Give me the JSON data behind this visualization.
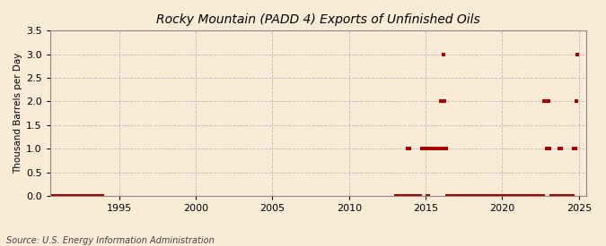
{
  "title": "Rocky Mountain (PADD 4) Exports of Unfinished Oils",
  "ylabel": "Thousand Barrels per Day",
  "source": "Source: U.S. Energy Information Administration",
  "background_color": "#faebd7",
  "plot_bg_color": "#faebd7",
  "marker_color": "#aa0000",
  "xlim": [
    1990.5,
    2025.5
  ],
  "ylim": [
    0,
    3.5
  ],
  "yticks": [
    0.0,
    0.5,
    1.0,
    1.5,
    2.0,
    2.5,
    3.0,
    3.5
  ],
  "xticks": [
    1995,
    2000,
    2005,
    2010,
    2015,
    2020,
    2025
  ],
  "data_points": [
    [
      1990.083,
      0.0
    ],
    [
      1990.167,
      0.0
    ],
    [
      1990.25,
      0.0
    ],
    [
      1990.333,
      0.0
    ],
    [
      1990.417,
      0.0
    ],
    [
      1990.5,
      0.0
    ],
    [
      1990.583,
      0.0
    ],
    [
      1990.667,
      0.0
    ],
    [
      1990.75,
      0.0
    ],
    [
      1990.833,
      0.0
    ],
    [
      1990.917,
      0.0
    ],
    [
      1991.0,
      0.0
    ],
    [
      1991.083,
      0.0
    ],
    [
      1991.167,
      0.0
    ],
    [
      1991.25,
      0.0
    ],
    [
      1991.333,
      0.0
    ],
    [
      1991.417,
      0.0
    ],
    [
      1991.5,
      0.0
    ],
    [
      1991.583,
      0.0
    ],
    [
      1991.667,
      0.0
    ],
    [
      1991.75,
      0.0
    ],
    [
      1991.833,
      0.0
    ],
    [
      1991.917,
      0.0
    ],
    [
      1992.0,
      0.0
    ],
    [
      1992.083,
      0.0
    ],
    [
      1992.167,
      0.0
    ],
    [
      1992.25,
      0.0
    ],
    [
      1992.333,
      0.0
    ],
    [
      1992.417,
      0.0
    ],
    [
      1992.5,
      0.0
    ],
    [
      1992.583,
      0.0
    ],
    [
      1992.667,
      0.0
    ],
    [
      1992.75,
      0.0
    ],
    [
      1992.833,
      0.0
    ],
    [
      1992.917,
      0.0
    ],
    [
      1993.0,
      0.0
    ],
    [
      1993.083,
      0.0
    ],
    [
      1993.167,
      0.0
    ],
    [
      1993.25,
      0.0
    ],
    [
      1993.333,
      0.0
    ],
    [
      1993.417,
      0.0
    ],
    [
      1993.5,
      0.0
    ],
    [
      1993.583,
      0.0
    ],
    [
      1993.667,
      0.0
    ],
    [
      1993.75,
      0.0
    ],
    [
      1993.833,
      0.0
    ],
    [
      1993.917,
      0.0
    ],
    [
      2013.083,
      0.0
    ],
    [
      2013.167,
      0.0
    ],
    [
      2013.25,
      0.0
    ],
    [
      2013.333,
      0.0
    ],
    [
      2013.417,
      0.0
    ],
    [
      2013.5,
      0.0
    ],
    [
      2013.583,
      0.0
    ],
    [
      2013.667,
      0.0
    ],
    [
      2013.75,
      0.0
    ],
    [
      2013.833,
      1.0
    ],
    [
      2013.917,
      1.0
    ],
    [
      2014.0,
      0.0
    ],
    [
      2014.083,
      0.0
    ],
    [
      2014.167,
      0.0
    ],
    [
      2014.25,
      0.0
    ],
    [
      2014.333,
      0.0
    ],
    [
      2014.417,
      0.0
    ],
    [
      2014.5,
      0.0
    ],
    [
      2014.583,
      0.0
    ],
    [
      2014.667,
      0.0
    ],
    [
      2014.75,
      1.0
    ],
    [
      2014.833,
      1.0
    ],
    [
      2014.917,
      1.0
    ],
    [
      2015.0,
      1.0
    ],
    [
      2015.083,
      0.0
    ],
    [
      2015.167,
      0.0
    ],
    [
      2015.25,
      1.0
    ],
    [
      2015.333,
      1.0
    ],
    [
      2015.417,
      1.0
    ],
    [
      2015.5,
      1.0
    ],
    [
      2015.583,
      1.0
    ],
    [
      2015.667,
      1.0
    ],
    [
      2015.75,
      1.0
    ],
    [
      2015.833,
      1.0
    ],
    [
      2015.917,
      1.0
    ],
    [
      2016.0,
      2.0
    ],
    [
      2016.083,
      1.0
    ],
    [
      2016.167,
      3.0
    ],
    [
      2016.25,
      2.0
    ],
    [
      2016.333,
      1.0
    ],
    [
      2016.417,
      0.0
    ],
    [
      2016.5,
      0.0
    ],
    [
      2016.583,
      0.0
    ],
    [
      2016.667,
      0.0
    ],
    [
      2016.75,
      0.0
    ],
    [
      2016.833,
      0.0
    ],
    [
      2016.917,
      0.0
    ],
    [
      2017.0,
      0.0
    ],
    [
      2017.083,
      0.0
    ],
    [
      2017.167,
      0.0
    ],
    [
      2017.25,
      0.0
    ],
    [
      2017.333,
      0.0
    ],
    [
      2017.417,
      0.0
    ],
    [
      2017.5,
      0.0
    ],
    [
      2017.583,
      0.0
    ],
    [
      2017.667,
      0.0
    ],
    [
      2017.75,
      0.0
    ],
    [
      2017.833,
      0.0
    ],
    [
      2017.917,
      0.0
    ],
    [
      2018.0,
      0.0
    ],
    [
      2018.083,
      0.0
    ],
    [
      2018.167,
      0.0
    ],
    [
      2018.25,
      0.0
    ],
    [
      2018.333,
      0.0
    ],
    [
      2018.417,
      0.0
    ],
    [
      2018.5,
      0.0
    ],
    [
      2018.583,
      0.0
    ],
    [
      2018.667,
      0.0
    ],
    [
      2018.75,
      0.0
    ],
    [
      2018.833,
      0.0
    ],
    [
      2018.917,
      0.0
    ],
    [
      2019.0,
      0.0
    ],
    [
      2019.083,
      0.0
    ],
    [
      2019.167,
      0.0
    ],
    [
      2019.25,
      0.0
    ],
    [
      2019.333,
      0.0
    ],
    [
      2019.417,
      0.0
    ],
    [
      2019.5,
      0.0
    ],
    [
      2019.583,
      0.0
    ],
    [
      2019.667,
      0.0
    ],
    [
      2019.75,
      0.0
    ],
    [
      2019.833,
      0.0
    ],
    [
      2019.917,
      0.0
    ],
    [
      2020.0,
      0.0
    ],
    [
      2020.083,
      0.0
    ],
    [
      2020.167,
      0.0
    ],
    [
      2020.25,
      0.0
    ],
    [
      2020.333,
      0.0
    ],
    [
      2020.417,
      0.0
    ],
    [
      2020.5,
      0.0
    ],
    [
      2020.583,
      0.0
    ],
    [
      2020.667,
      0.0
    ],
    [
      2020.75,
      0.0
    ],
    [
      2020.833,
      0.0
    ],
    [
      2020.917,
      0.0
    ],
    [
      2021.0,
      0.0
    ],
    [
      2021.083,
      0.0
    ],
    [
      2021.167,
      0.0
    ],
    [
      2021.25,
      0.0
    ],
    [
      2021.333,
      0.0
    ],
    [
      2021.417,
      0.0
    ],
    [
      2021.5,
      0.0
    ],
    [
      2021.583,
      0.0
    ],
    [
      2021.667,
      0.0
    ],
    [
      2021.75,
      0.0
    ],
    [
      2021.833,
      0.0
    ],
    [
      2021.917,
      0.0
    ],
    [
      2022.0,
      0.0
    ],
    [
      2022.083,
      0.0
    ],
    [
      2022.167,
      0.0
    ],
    [
      2022.25,
      0.0
    ],
    [
      2022.333,
      0.0
    ],
    [
      2022.417,
      0.0
    ],
    [
      2022.5,
      0.0
    ],
    [
      2022.583,
      0.0
    ],
    [
      2022.667,
      0.0
    ],
    [
      2022.75,
      2.0
    ],
    [
      2022.833,
      2.0
    ],
    [
      2022.917,
      1.0
    ],
    [
      2023.0,
      2.0
    ],
    [
      2023.083,
      1.0
    ],
    [
      2023.167,
      0.0
    ],
    [
      2023.25,
      0.0
    ],
    [
      2023.333,
      0.0
    ],
    [
      2023.417,
      0.0
    ],
    [
      2023.5,
      0.0
    ],
    [
      2023.583,
      0.0
    ],
    [
      2023.667,
      0.0
    ],
    [
      2023.75,
      1.0
    ],
    [
      2023.833,
      1.0
    ],
    [
      2023.917,
      0.0
    ],
    [
      2024.0,
      0.0
    ],
    [
      2024.083,
      0.0
    ],
    [
      2024.167,
      0.0
    ],
    [
      2024.25,
      0.0
    ],
    [
      2024.333,
      0.0
    ],
    [
      2024.417,
      0.0
    ],
    [
      2024.5,
      0.0
    ],
    [
      2024.583,
      0.0
    ],
    [
      2024.667,
      1.0
    ],
    [
      2024.75,
      1.0
    ],
    [
      2024.833,
      2.0
    ],
    [
      2024.917,
      3.0
    ]
  ]
}
